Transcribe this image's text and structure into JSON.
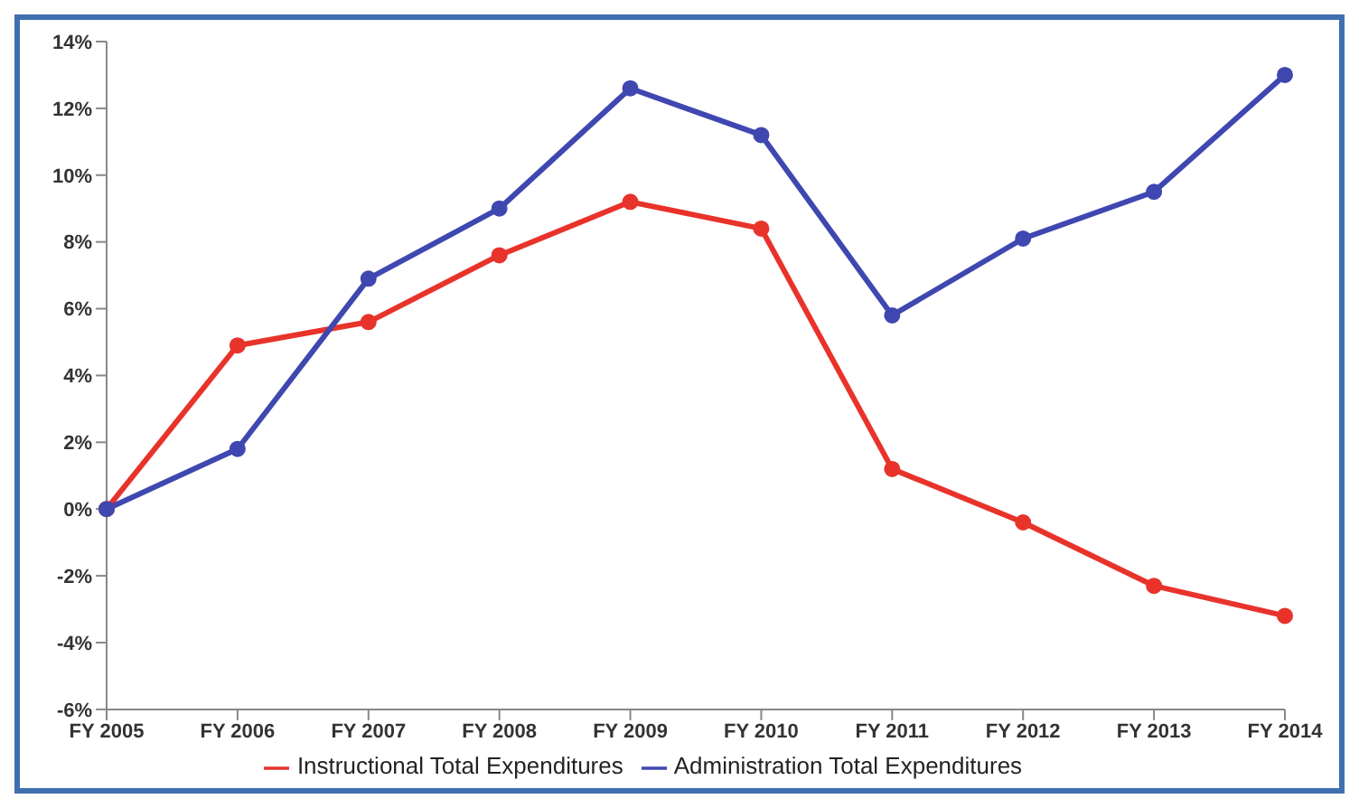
{
  "chart_data": {
    "type": "line",
    "categories": [
      "FY 2005",
      "FY 2006",
      "FY 2007",
      "FY 2008",
      "FY 2009",
      "FY 2010",
      "FY 2011",
      "FY 2012",
      "FY 2013",
      "FY 2014"
    ],
    "series": [
      {
        "name": "Instructional Total Expenditures",
        "color": "#e8332b",
        "values": [
          0,
          4.9,
          5.6,
          7.6,
          9.2,
          8.4,
          1.2,
          -0.4,
          -2.3,
          -3.2
        ]
      },
      {
        "name": "Administration Total Expenditures",
        "color": "#3f47b0",
        "values": [
          0,
          1.8,
          6.9,
          9.0,
          12.6,
          11.2,
          5.8,
          8.1,
          9.5,
          13.0
        ]
      }
    ],
    "ylim": [
      -6,
      14
    ],
    "yticks": [
      {
        "value": -6,
        "label": "-6%"
      },
      {
        "value": -4,
        "label": "-4%"
      },
      {
        "value": -2,
        "label": "-2%"
      },
      {
        "value": 0,
        "label": "0%"
      },
      {
        "value": 2,
        "label": "2%"
      },
      {
        "value": 4,
        "label": "4%"
      },
      {
        "value": 6,
        "label": "6%"
      },
      {
        "value": 8,
        "label": "8%"
      },
      {
        "value": 10,
        "label": "10%"
      },
      {
        "value": 12,
        "label": "12%"
      },
      {
        "value": 14,
        "label": "14%"
      }
    ],
    "grid": false,
    "legend": "bottom",
    "marker": "circle",
    "line_style": "solid"
  }
}
